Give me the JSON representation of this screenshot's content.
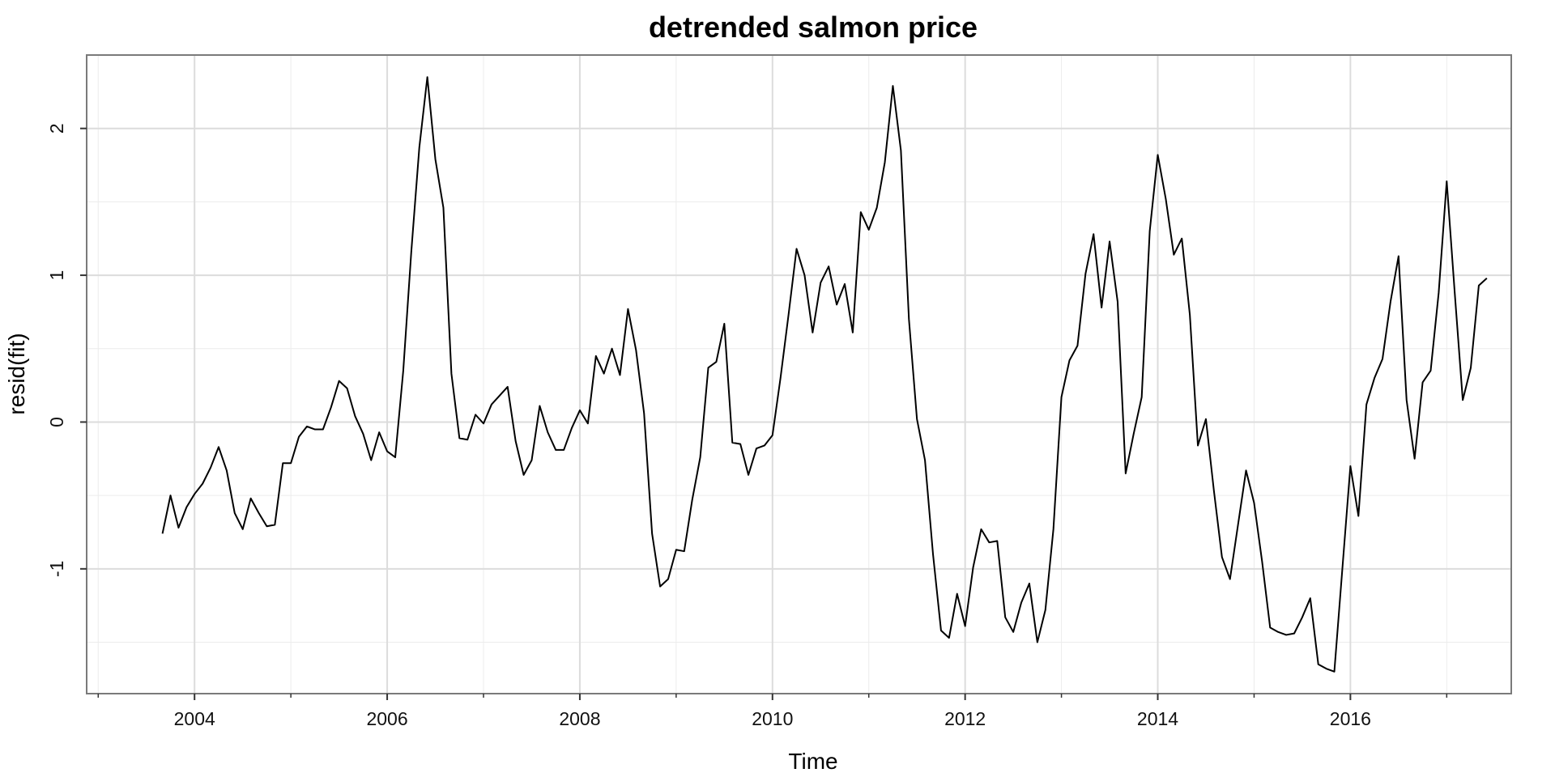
{
  "chart_data": {
    "type": "line",
    "title": "detrended salmon price",
    "xlabel": "Time",
    "ylabel": "resid(fit)",
    "xlim": [
      2002.88,
      2017.67
    ],
    "ylim": [
      -1.85,
      2.5
    ],
    "x_major_ticks": [
      2004,
      2006,
      2008,
      2010,
      2012,
      2014,
      2016
    ],
    "x_minor_ticks": [
      2003,
      2005,
      2007,
      2009,
      2011,
      2013,
      2015,
      2017
    ],
    "y_major_ticks": [
      -1,
      0,
      1,
      2
    ],
    "y_minor_ticks": [
      -1.5,
      -0.5,
      0.5,
      1.5
    ],
    "x_tick_labels": [
      "2004",
      "2006",
      "2008",
      "2010",
      "2012",
      "2014",
      "2016"
    ],
    "y_tick_labels": [
      "-1",
      "0",
      "1",
      "2"
    ],
    "grid": true,
    "legend": "none",
    "series": [
      {
        "color": "#000000",
        "x_start": 2003.667,
        "x_step": 0.08333,
        "values": [
          -0.76,
          -0.5,
          -0.72,
          -0.58,
          -0.49,
          -0.42,
          -0.31,
          -0.17,
          -0.33,
          -0.62,
          -0.73,
          -0.52,
          -0.62,
          -0.71,
          -0.7,
          -0.28,
          -0.28,
          -0.1,
          -0.03,
          -0.05,
          -0.05,
          0.1,
          0.28,
          0.23,
          0.04,
          -0.08,
          -0.26,
          -0.07,
          -0.2,
          -0.24,
          0.35,
          1.16,
          1.87,
          2.35,
          1.79,
          1.46,
          0.33,
          -0.11,
          -0.12,
          0.05,
          -0.01,
          0.12,
          0.18,
          0.24,
          -0.13,
          -0.36,
          -0.26,
          0.11,
          -0.07,
          -0.19,
          -0.19,
          -0.04,
          0.08,
          -0.01,
          0.45,
          0.33,
          0.5,
          0.32,
          0.77,
          0.49,
          0.06,
          -0.76,
          -1.12,
          -1.07,
          -0.87,
          -0.88,
          -0.53,
          -0.24,
          0.37,
          0.41,
          0.67,
          -0.14,
          -0.15,
          -0.36,
          -0.18,
          -0.16,
          -0.09,
          0.3,
          0.73,
          1.18,
          1.0,
          0.61,
          0.95,
          1.06,
          0.8,
          0.94,
          0.61,
          1.43,
          1.31,
          1.46,
          1.77,
          2.29,
          1.85,
          0.7,
          0.02,
          -0.26,
          -0.9,
          -1.42,
          -1.47,
          -1.17,
          -1.39,
          -0.99,
          -0.73,
          -0.82,
          -0.81,
          -1.33,
          -1.43,
          -1.23,
          -1.1,
          -1.5,
          -1.28,
          -0.73,
          0.17,
          0.42,
          0.52,
          1.01,
          1.28,
          0.78,
          1.23,
          0.82,
          -0.35,
          -0.08,
          0.17,
          1.3,
          1.82,
          1.52,
          1.14,
          1.25,
          0.73,
          -0.16,
          0.02,
          -0.47,
          -0.92,
          -1.07,
          -0.7,
          -0.33,
          -0.55,
          -0.95,
          -1.4,
          -1.43,
          -1.45,
          -1.44,
          -1.33,
          -1.2,
          -1.65,
          -1.68,
          -1.7,
          -1.0,
          -0.3,
          -0.64,
          0.12,
          0.3,
          0.43,
          0.82,
          1.13,
          0.15,
          -0.25,
          0.27,
          0.35,
          0.88,
          1.64,
          0.88,
          0.15,
          0.37,
          0.93,
          0.98
        ]
      }
    ]
  }
}
